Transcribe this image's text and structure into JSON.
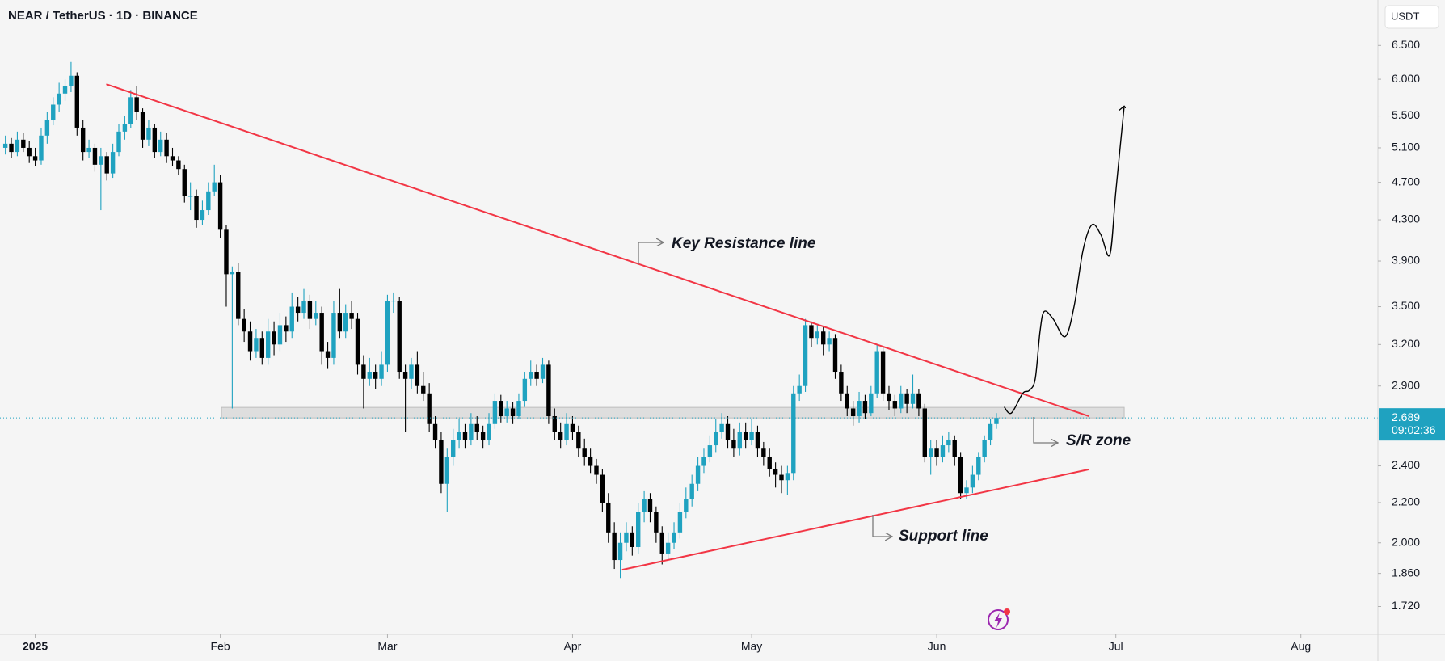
{
  "chart_data": {
    "type": "candlestick",
    "title": "NEAR / TetherUS · 1D · BINANCE",
    "currency": "USDT",
    "countdown": "09:02:36",
    "up_color": "#1fa2c0",
    "down_color": "#000000",
    "log": true,
    "grid": false,
    "xlim": [
      -5.9,
      224.9
    ],
    "ylim": [
      1.61,
      7.24
    ],
    "xticks": [
      {
        "value": 0,
        "label": "2025"
      },
      {
        "value": 31,
        "label": "Feb"
      },
      {
        "value": 59,
        "label": "Mar"
      },
      {
        "value": 90,
        "label": "Apr"
      },
      {
        "value": 120,
        "label": "May"
      },
      {
        "value": 151,
        "label": "Jun"
      },
      {
        "value": 181,
        "label": "Jul"
      },
      {
        "value": 212,
        "label": "Aug"
      }
    ],
    "yticks": [
      {
        "value": 6.5,
        "label": "6.500"
      },
      {
        "value": 6.0,
        "label": "6.000"
      },
      {
        "value": 5.5,
        "label": "5.500"
      },
      {
        "value": 5.1,
        "label": "5.100"
      },
      {
        "value": 4.7,
        "label": "4.700"
      },
      {
        "value": 4.3,
        "label": "4.300"
      },
      {
        "value": 3.9,
        "label": "3.900"
      },
      {
        "value": 3.5,
        "label": "3.500"
      },
      {
        "value": 3.2,
        "label": "3.200"
      },
      {
        "value": 2.9,
        "label": "2.900"
      },
      {
        "value": 2.4,
        "label": "2.400"
      },
      {
        "value": 2.2,
        "label": "2.200"
      },
      {
        "value": 2.0,
        "label": "2.000"
      },
      {
        "value": 1.86,
        "label": "1.860"
      },
      {
        "value": 1.72,
        "label": "1.720"
      }
    ],
    "x": [
      -5,
      -4,
      -3,
      -2,
      -1,
      0,
      1,
      2,
      3,
      4,
      5,
      6,
      7,
      8,
      9,
      10,
      11,
      12,
      13,
      14,
      15,
      16,
      17,
      18,
      19,
      20,
      21,
      22,
      23,
      24,
      25,
      26,
      27,
      28,
      29,
      30,
      31,
      32,
      33,
      34,
      35,
      36,
      37,
      38,
      39,
      40,
      41,
      42,
      43,
      44,
      45,
      46,
      47,
      48,
      49,
      50,
      51,
      52,
      53,
      54,
      55,
      56,
      57,
      58,
      59,
      60,
      61,
      62,
      63,
      64,
      65,
      66,
      67,
      68,
      69,
      70,
      71,
      72,
      73,
      74,
      75,
      76,
      77,
      78,
      79,
      80,
      81,
      82,
      83,
      84,
      85,
      86,
      87,
      88,
      89,
      90,
      91,
      92,
      93,
      94,
      95,
      96,
      97,
      98,
      99,
      100,
      101,
      102,
      103,
      104,
      105,
      106,
      107,
      108,
      109,
      110,
      111,
      112,
      113,
      114,
      115,
      116,
      117,
      118,
      119,
      120,
      121,
      122,
      123,
      124,
      125,
      126,
      127,
      128,
      129,
      130,
      131,
      132,
      133,
      134,
      135,
      136,
      137,
      138,
      139,
      140,
      141,
      142,
      143,
      144,
      145,
      146,
      147,
      148,
      149,
      150,
      151,
      152,
      153,
      154,
      155,
      156,
      157,
      158,
      159,
      160,
      161
    ],
    "ohlc": [
      [
        5.1,
        5.25,
        5.02,
        5.15
      ],
      [
        5.15,
        5.22,
        4.98,
        5.05
      ],
      [
        5.05,
        5.3,
        5.0,
        5.2
      ],
      [
        5.2,
        5.28,
        5.05,
        5.1
      ],
      [
        5.1,
        5.18,
        4.92,
        5.0
      ],
      [
        5.0,
        5.1,
        4.88,
        4.95
      ],
      [
        4.95,
        5.35,
        4.9,
        5.25
      ],
      [
        5.25,
        5.55,
        5.15,
        5.45
      ],
      [
        5.45,
        5.75,
        5.38,
        5.65
      ],
      [
        5.65,
        5.95,
        5.55,
        5.8
      ],
      [
        5.8,
        6.0,
        5.7,
        5.9
      ],
      [
        5.9,
        6.25,
        5.82,
        6.05
      ],
      [
        6.05,
        6.1,
        5.25,
        5.35
      ],
      [
        5.35,
        5.45,
        4.95,
        5.05
      ],
      [
        5.05,
        5.2,
        4.98,
        5.1
      ],
      [
        5.1,
        5.15,
        4.82,
        4.9
      ],
      [
        4.9,
        5.1,
        4.4,
        5.0
      ],
      [
        5.0,
        5.05,
        4.72,
        4.8
      ],
      [
        4.8,
        5.15,
        4.75,
        5.05
      ],
      [
        5.05,
        5.4,
        5.0,
        5.3
      ],
      [
        5.3,
        5.5,
        5.2,
        5.4
      ],
      [
        5.4,
        5.85,
        5.35,
        5.75
      ],
      [
        5.75,
        5.9,
        5.45,
        5.55
      ],
      [
        5.55,
        5.6,
        5.1,
        5.2
      ],
      [
        5.2,
        5.45,
        5.12,
        5.35
      ],
      [
        5.35,
        5.4,
        4.98,
        5.05
      ],
      [
        5.05,
        5.3,
        5.0,
        5.2
      ],
      [
        5.2,
        5.28,
        4.92,
        5.0
      ],
      [
        5.0,
        5.1,
        4.88,
        4.95
      ],
      [
        4.95,
        5.0,
        4.78,
        4.85
      ],
      [
        4.85,
        4.9,
        4.48,
        4.55
      ],
      [
        4.55,
        4.7,
        4.4,
        4.55
      ],
      [
        4.55,
        4.62,
        4.22,
        4.3
      ],
      [
        4.3,
        4.5,
        4.25,
        4.4
      ],
      [
        4.4,
        4.7,
        4.35,
        4.6
      ],
      [
        4.6,
        4.9,
        4.55,
        4.7
      ],
      [
        4.7,
        4.78,
        4.12,
        4.2
      ],
      [
        4.2,
        4.25,
        3.5,
        3.78
      ],
      [
        3.78,
        3.85,
        2.75,
        3.8
      ],
      [
        3.8,
        3.88,
        3.35,
        3.4
      ],
      [
        3.4,
        3.48,
        3.22,
        3.3
      ],
      [
        3.3,
        3.38,
        3.08,
        3.15
      ],
      [
        3.15,
        3.32,
        3.1,
        3.25
      ],
      [
        3.25,
        3.3,
        3.05,
        3.1
      ],
      [
        3.1,
        3.4,
        3.05,
        3.3
      ],
      [
        3.3,
        3.38,
        3.12,
        3.2
      ],
      [
        3.2,
        3.45,
        3.15,
        3.35
      ],
      [
        3.35,
        3.42,
        3.22,
        3.3
      ],
      [
        3.3,
        3.62,
        3.25,
        3.5
      ],
      [
        3.5,
        3.58,
        3.38,
        3.45
      ],
      [
        3.45,
        3.65,
        3.4,
        3.55
      ],
      [
        3.55,
        3.6,
        3.32,
        3.4
      ],
      [
        3.4,
        3.55,
        3.35,
        3.45
      ],
      [
        3.45,
        3.5,
        3.05,
        3.15
      ],
      [
        3.15,
        3.22,
        3.02,
        3.1
      ],
      [
        3.1,
        3.55,
        3.05,
        3.45
      ],
      [
        3.45,
        3.65,
        3.25,
        3.3
      ],
      [
        3.3,
        3.52,
        3.25,
        3.45
      ],
      [
        3.45,
        3.55,
        3.32,
        3.4
      ],
      [
        3.4,
        3.45,
        2.98,
        3.05
      ],
      [
        3.05,
        3.12,
        2.75,
        2.95
      ],
      [
        2.95,
        3.1,
        2.9,
        3.0
      ],
      [
        3.0,
        3.05,
        2.88,
        2.95
      ],
      [
        2.95,
        3.15,
        2.9,
        3.05
      ],
      [
        3.05,
        3.6,
        3.0,
        3.55
      ],
      [
        3.55,
        3.62,
        3.45,
        3.55
      ],
      [
        3.55,
        3.58,
        2.95,
        3.0
      ],
      [
        3.0,
        3.05,
        2.6,
        2.95
      ],
      [
        2.95,
        3.1,
        2.88,
        3.05
      ],
      [
        3.05,
        3.15,
        2.85,
        2.9
      ],
      [
        2.9,
        3.0,
        2.8,
        2.85
      ],
      [
        2.85,
        2.92,
        2.6,
        2.65
      ],
      [
        2.65,
        2.7,
        2.5,
        2.55
      ],
      [
        2.55,
        2.6,
        2.25,
        2.3
      ],
      [
        2.3,
        2.5,
        2.15,
        2.45
      ],
      [
        2.45,
        2.62,
        2.4,
        2.55
      ],
      [
        2.55,
        2.68,
        2.5,
        2.6
      ],
      [
        2.6,
        2.65,
        2.5,
        2.55
      ],
      [
        2.55,
        2.72,
        2.52,
        2.65
      ],
      [
        2.65,
        2.7,
        2.55,
        2.6
      ],
      [
        2.6,
        2.64,
        2.5,
        2.55
      ],
      [
        2.55,
        2.72,
        2.52,
        2.65
      ],
      [
        2.65,
        2.85,
        2.62,
        2.8
      ],
      [
        2.8,
        2.84,
        2.66,
        2.7
      ],
      [
        2.7,
        2.8,
        2.66,
        2.75
      ],
      [
        2.75,
        2.79,
        2.65,
        2.7
      ],
      [
        2.7,
        2.85,
        2.68,
        2.8
      ],
      [
        2.8,
        3.0,
        2.76,
        2.95
      ],
      [
        2.95,
        3.08,
        2.9,
        3.0
      ],
      [
        3.0,
        3.05,
        2.9,
        2.95
      ],
      [
        2.95,
        3.1,
        2.92,
        3.05
      ],
      [
        3.05,
        3.08,
        2.65,
        2.7
      ],
      [
        2.7,
        2.75,
        2.55,
        2.6
      ],
      [
        2.6,
        2.66,
        2.5,
        2.55
      ],
      [
        2.55,
        2.72,
        2.52,
        2.65
      ],
      [
        2.65,
        2.7,
        2.55,
        2.6
      ],
      [
        2.6,
        2.64,
        2.45,
        2.5
      ],
      [
        2.5,
        2.56,
        2.4,
        2.45
      ],
      [
        2.45,
        2.5,
        2.36,
        2.4
      ],
      [
        2.4,
        2.44,
        2.3,
        2.35
      ],
      [
        2.35,
        2.38,
        2.15,
        2.2
      ],
      [
        2.2,
        2.25,
        2.0,
        2.05
      ],
      [
        2.05,
        2.1,
        1.88,
        1.92
      ],
      [
        1.92,
        2.05,
        1.84,
        2.0
      ],
      [
        2.0,
        2.1,
        1.96,
        2.05
      ],
      [
        2.05,
        2.08,
        1.94,
        1.98
      ],
      [
        1.98,
        2.2,
        1.95,
        2.15
      ],
      [
        2.15,
        2.26,
        2.1,
        2.22
      ],
      [
        2.22,
        2.25,
        2.1,
        2.15
      ],
      [
        2.15,
        2.18,
        2.0,
        2.05
      ],
      [
        2.05,
        2.08,
        1.9,
        1.95
      ],
      [
        1.95,
        2.05,
        1.92,
        2.0
      ],
      [
        2.0,
        2.1,
        1.97,
        2.05
      ],
      [
        2.05,
        2.2,
        2.02,
        2.15
      ],
      [
        2.15,
        2.28,
        2.12,
        2.22
      ],
      [
        2.22,
        2.35,
        2.18,
        2.3
      ],
      [
        2.3,
        2.45,
        2.26,
        2.4
      ],
      [
        2.4,
        2.5,
        2.36,
        2.45
      ],
      [
        2.45,
        2.58,
        2.42,
        2.52
      ],
      [
        2.52,
        2.68,
        2.48,
        2.6
      ],
      [
        2.6,
        2.72,
        2.56,
        2.65
      ],
      [
        2.65,
        2.7,
        2.5,
        2.55
      ],
      [
        2.55,
        2.62,
        2.45,
        2.5
      ],
      [
        2.5,
        2.66,
        2.46,
        2.6
      ],
      [
        2.6,
        2.66,
        2.5,
        2.55
      ],
      [
        2.55,
        2.68,
        2.52,
        2.6
      ],
      [
        2.6,
        2.64,
        2.45,
        2.5
      ],
      [
        2.5,
        2.54,
        2.4,
        2.45
      ],
      [
        2.45,
        2.5,
        2.34,
        2.38
      ],
      [
        2.38,
        2.42,
        2.28,
        2.35
      ],
      [
        2.35,
        2.4,
        2.25,
        2.32
      ],
      [
        2.32,
        2.4,
        2.24,
        2.36
      ],
      [
        2.36,
        2.9,
        2.32,
        2.85
      ],
      [
        2.85,
        2.98,
        2.8,
        2.9
      ],
      [
        2.9,
        3.4,
        2.86,
        3.35
      ],
      [
        3.35,
        3.38,
        3.18,
        3.25
      ],
      [
        3.25,
        3.36,
        3.2,
        3.3
      ],
      [
        3.3,
        3.34,
        3.12,
        3.2
      ],
      [
        3.2,
        3.3,
        3.15,
        3.25
      ],
      [
        3.25,
        3.28,
        2.95,
        3.0
      ],
      [
        3.0,
        3.05,
        2.8,
        2.85
      ],
      [
        2.85,
        2.9,
        2.7,
        2.75
      ],
      [
        2.75,
        2.8,
        2.64,
        2.7
      ],
      [
        2.7,
        2.86,
        2.66,
        2.8
      ],
      [
        2.8,
        2.84,
        2.68,
        2.72
      ],
      [
        2.72,
        2.9,
        2.7,
        2.85
      ],
      [
        2.85,
        3.2,
        2.82,
        3.15
      ],
      [
        3.15,
        3.18,
        2.8,
        2.85
      ],
      [
        2.85,
        2.9,
        2.74,
        2.8
      ],
      [
        2.8,
        2.84,
        2.7,
        2.75
      ],
      [
        2.75,
        2.9,
        2.72,
        2.85
      ],
      [
        2.85,
        2.88,
        2.72,
        2.78
      ],
      [
        2.78,
        2.98,
        2.75,
        2.85
      ],
      [
        2.85,
        2.88,
        2.7,
        2.75
      ],
      [
        2.75,
        2.78,
        2.42,
        2.45
      ],
      [
        2.45,
        2.55,
        2.35,
        2.5
      ],
      [
        2.5,
        2.55,
        2.4,
        2.45
      ],
      [
        2.45,
        2.58,
        2.42,
        2.52
      ],
      [
        2.52,
        2.6,
        2.48,
        2.55
      ],
      [
        2.55,
        2.58,
        2.4,
        2.45
      ],
      [
        2.45,
        2.48,
        2.22,
        2.25
      ],
      [
        2.25,
        2.32,
        2.22,
        2.28
      ],
      [
        2.28,
        2.4,
        2.25,
        2.35
      ],
      [
        2.35,
        2.48,
        2.32,
        2.45
      ],
      [
        2.45,
        2.58,
        2.42,
        2.55
      ],
      [
        2.55,
        2.68,
        2.52,
        2.65
      ],
      [
        2.65,
        2.72,
        2.62,
        2.689
      ]
    ],
    "trendlines": [
      {
        "points": [
          [
            11.9,
            5.93
          ],
          [
            176.5,
            2.7
          ]
        ],
        "color": "#f23645"
      },
      {
        "points": [
          [
            98.3,
            1.876
          ],
          [
            176.5,
            2.38
          ]
        ],
        "color": "#f23645"
      }
    ],
    "zone": {
      "x": [
        31.2,
        182.4
      ],
      "y": [
        2.689,
        2.757
      ]
    },
    "projection": {
      "points": [
        [
          162.3,
          2.76
        ],
        [
          163.5,
          2.72
        ],
        [
          165.4,
          2.85
        ],
        [
          166.5,
          2.87
        ],
        [
          167.5,
          2.95
        ],
        [
          168.3,
          3.3
        ],
        [
          169,
          3.46
        ],
        [
          170.5,
          3.4
        ],
        [
          172.5,
          3.26
        ],
        [
          174,
          3.5
        ],
        [
          175.5,
          4.0
        ],
        [
          177,
          4.25
        ],
        [
          178.5,
          4.15
        ],
        [
          180,
          3.96
        ],
        [
          181,
          4.6
        ],
        [
          182.4,
          5.63
        ]
      ],
      "color": "#000000"
    },
    "annotations": [
      "Key Resistance line",
      "S/R zone",
      "Support line"
    ]
  }
}
